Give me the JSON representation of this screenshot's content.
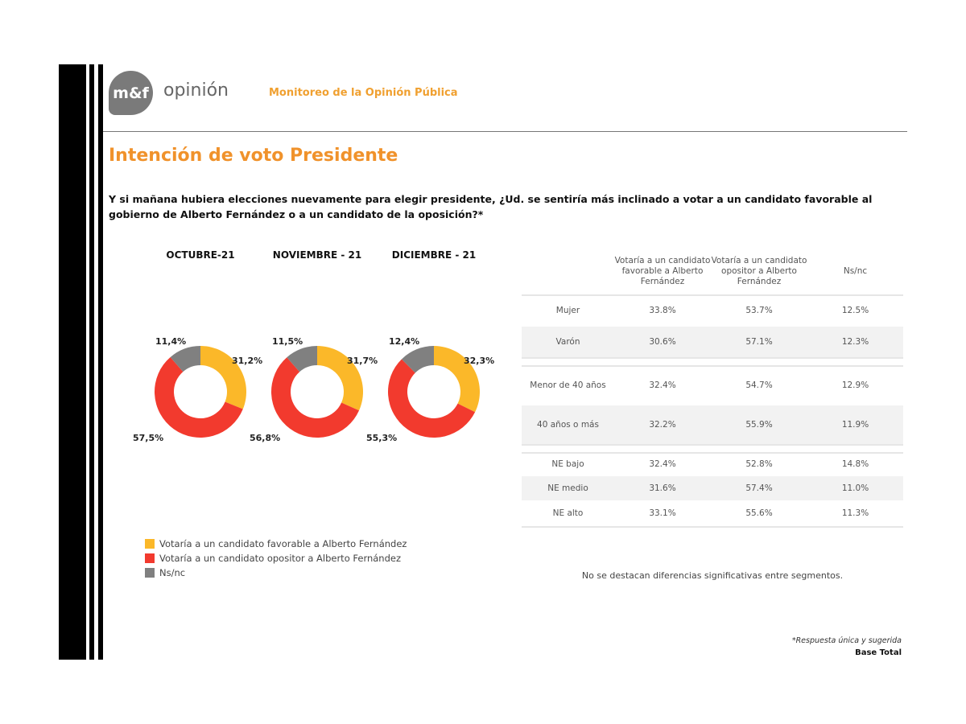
{
  "header": {
    "logo": "m&f",
    "brand": "opinión",
    "subtitle": "Monitoreo de la Opinión Pública"
  },
  "title": "Intención de voto Presidente",
  "question": "Y si mañana hubiera elecciones nuevamente para elegir presidente, ¿Ud. se sentiría más inclinado a votar a un candidato favorable al gobierno de Alberto Fernández o a un candidato de la oposición?*",
  "colors": {
    "favorable": "#fbb829",
    "opositor": "#f23a2e",
    "nsnc": "#808080",
    "accent": "#f0922b"
  },
  "chart_data": [
    {
      "type": "pie",
      "variant": "donut",
      "title": "OCTUBRE-21",
      "values": [
        31.2,
        57.5,
        11.4
      ],
      "labels": [
        "31,2%",
        "57,5%",
        "11,4%"
      ]
    },
    {
      "type": "pie",
      "variant": "donut",
      "title": "NOVIEMBRE - 21",
      "values": [
        31.7,
        56.8,
        11.5
      ],
      "labels": [
        "31,7%",
        "56,8%",
        "11,5%"
      ]
    },
    {
      "type": "pie",
      "variant": "donut",
      "title": "DICIEMBRE - 21",
      "values": [
        32.3,
        55.3,
        12.4
      ],
      "labels": [
        "32,3%",
        "55,3%",
        "12,4%"
      ]
    },
    {
      "type": "table",
      "columns": [
        "Votaría a un candidato favorable a Alberto Fernández",
        "Votaría a un candidato opositor a Alberto Fernández",
        "Ns/nc"
      ],
      "rows": [
        [
          "Mujer",
          "33.8%",
          "53.7%",
          "12.5%"
        ],
        [
          "Varón",
          "30.6%",
          "57.1%",
          "12.3%"
        ],
        [
          "Menor de 40 años",
          "32.4%",
          "54.7%",
          "12.9%"
        ],
        [
          "40 años o más",
          "32.2%",
          "55.9%",
          "11.9%"
        ],
        [
          "NE bajo",
          "32.4%",
          "52.8%",
          "14.8%"
        ],
        [
          "NE medio",
          "31.6%",
          "57.4%",
          "11.0%"
        ],
        [
          "NE alto",
          "33.1%",
          "55.6%",
          "11.3%"
        ]
      ]
    }
  ],
  "legend": [
    "Votaría a un candidato favorable a Alberto Fernández",
    "Votaría a un candidato opositor a Alberto Fernández",
    "Ns/nc"
  ],
  "note": "No se destacan diferencias significativas entre segmentos.",
  "footer": {
    "note": "*Respuesta única y sugerida",
    "base": "Base Total"
  }
}
